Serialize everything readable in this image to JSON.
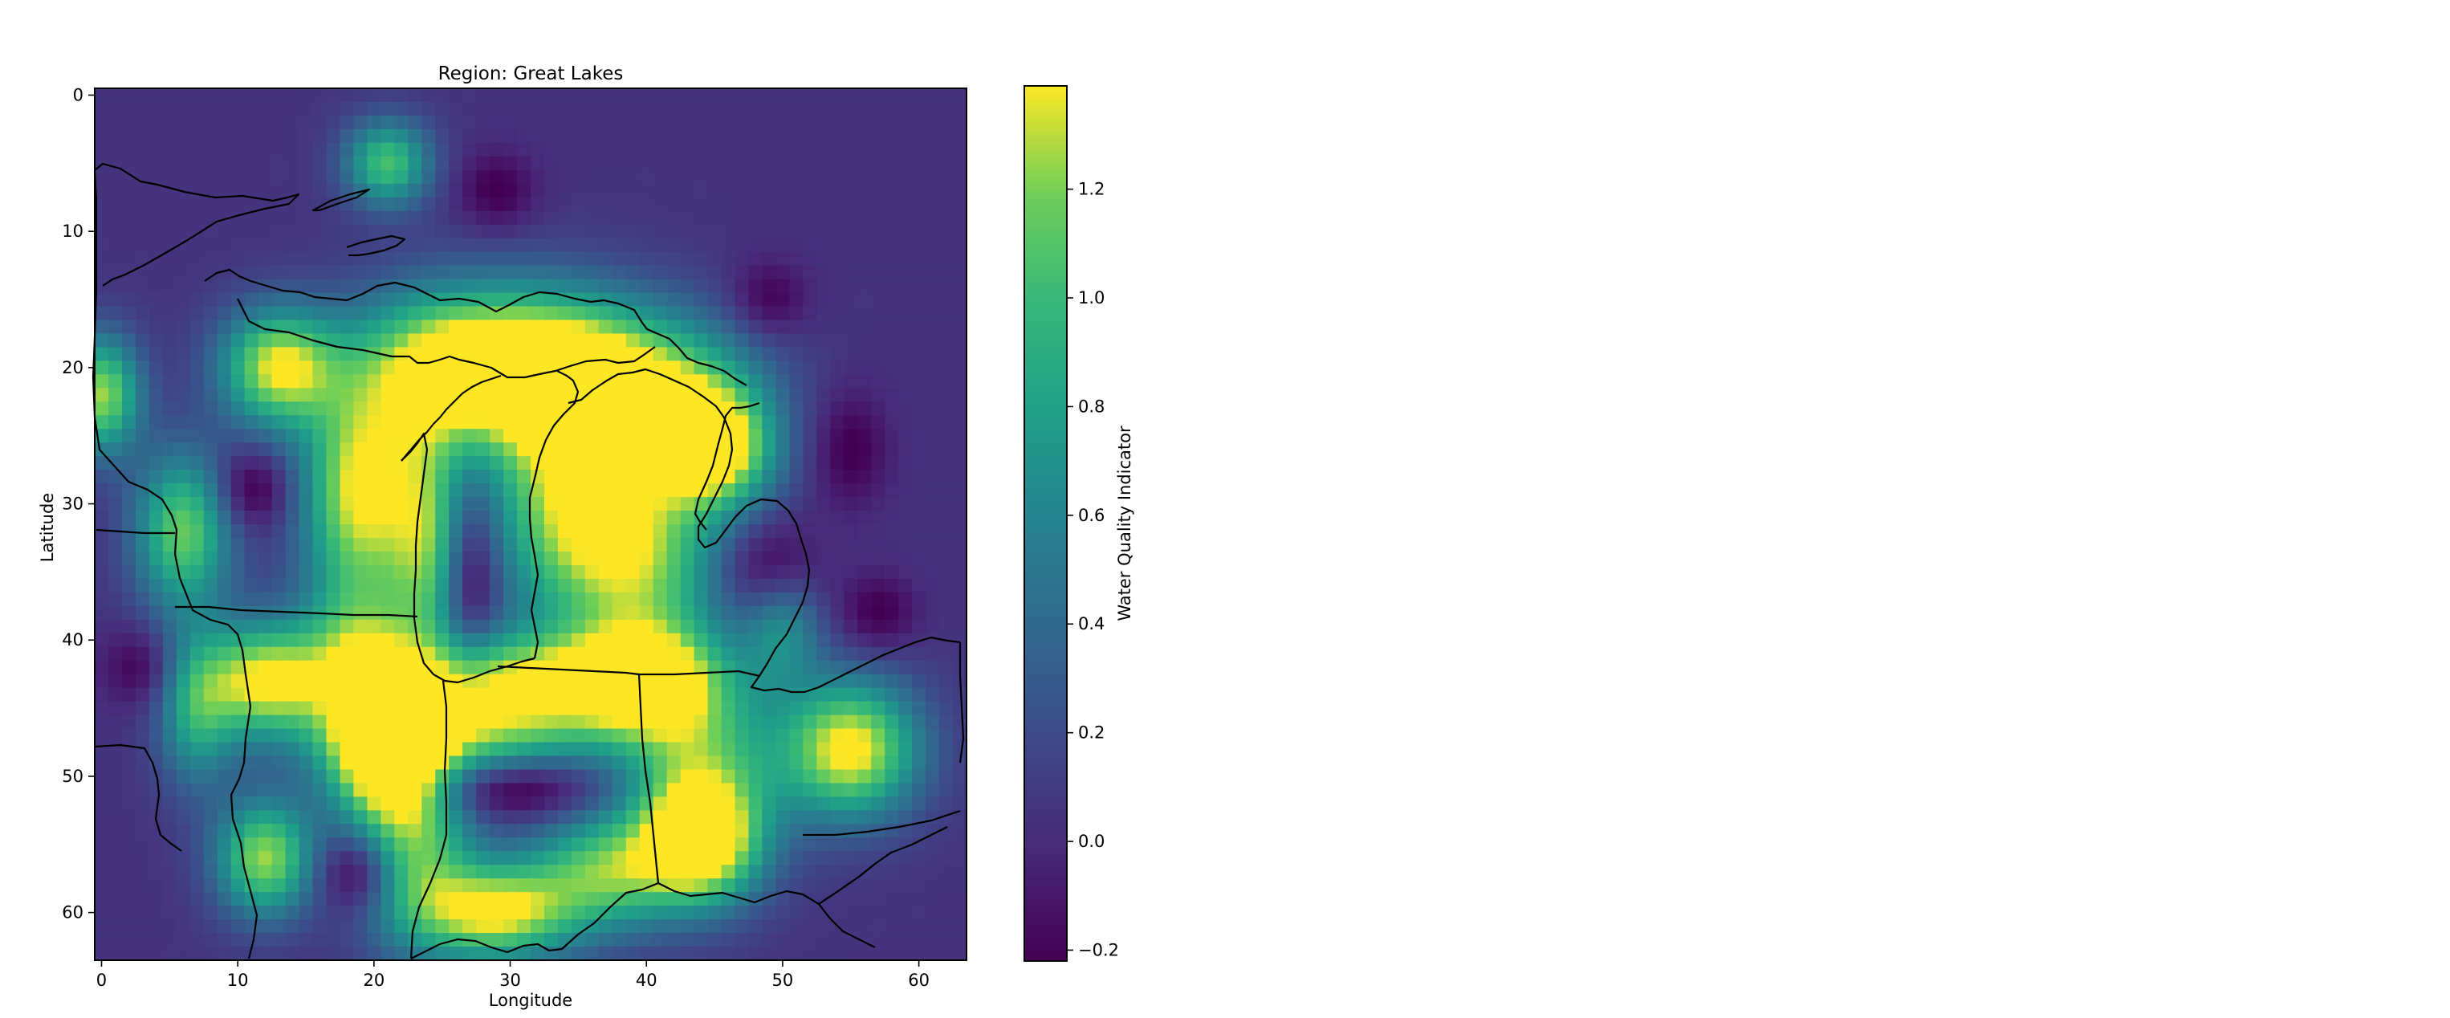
{
  "chart_data": {
    "type": "heatmap",
    "title": "Region: Great Lakes",
    "xlabel": "Longitude",
    "ylabel": "Latitude",
    "xlim": [
      -0.5,
      63.5
    ],
    "ylim": [
      63.5,
      -0.5
    ],
    "x_ticks": [
      "0",
      "10",
      "20",
      "30",
      "40",
      "50",
      "60"
    ],
    "y_ticks": [
      "0",
      "10",
      "20",
      "30",
      "40",
      "50",
      "60"
    ],
    "grid_size": [
      64,
      64
    ],
    "colormap": "viridis",
    "colorbar": {
      "label": "Water Quality Indicator",
      "range": [
        -0.22,
        1.39
      ],
      "ticks": [
        "−0.2",
        "0.0",
        "0.2",
        "0.4",
        "0.6",
        "0.8",
        "1.0",
        "1.2"
      ]
    },
    "field": {
      "background": 0.05,
      "blobs": [
        {
          "x": 21,
          "y": 5,
          "sx": 2.2,
          "sy": 2.2,
          "a": 1.0
        },
        {
          "x": 13,
          "y": 20,
          "sx": 3,
          "sy": 3,
          "a": 1.3
        },
        {
          "x": 19,
          "y": 29,
          "sx": 3,
          "sy": 5,
          "a": 1.3
        },
        {
          "x": 0,
          "y": 22,
          "sx": 2,
          "sy": 3,
          "a": 1.2
        },
        {
          "x": 6,
          "y": 32,
          "sx": 2.5,
          "sy": 4,
          "a": 1.1
        },
        {
          "x": 25,
          "y": 20,
          "sx": 5,
          "sy": 4,
          "a": 1.3
        },
        {
          "x": 33,
          "y": 20,
          "sx": 5,
          "sy": 4,
          "a": 1.2
        },
        {
          "x": 41,
          "y": 22,
          "sx": 5,
          "sy": 4,
          "a": 1.1
        },
        {
          "x": 45,
          "y": 26,
          "sx": 3,
          "sy": 3,
          "a": 1.3
        },
        {
          "x": 34,
          "y": 30,
          "sx": 4,
          "sy": 6,
          "a": 1.1
        },
        {
          "x": 40,
          "y": 34,
          "sx": 4,
          "sy": 5,
          "a": 1.0
        },
        {
          "x": 24,
          "y": 33,
          "sx": 2,
          "sy": 6,
          "a": 0.9
        },
        {
          "x": 12,
          "y": 43,
          "sx": 3,
          "sy": 3,
          "a": 1.3
        },
        {
          "x": 19,
          "y": 42,
          "sx": 3,
          "sy": 5,
          "a": 1.1
        },
        {
          "x": 21,
          "y": 49,
          "sx": 3,
          "sy": 3,
          "a": 1.2
        },
        {
          "x": 30,
          "y": 43,
          "sx": 7,
          "sy": 2.5,
          "a": 1.2
        },
        {
          "x": 40,
          "y": 43,
          "sx": 4,
          "sy": 3,
          "a": 1.1
        },
        {
          "x": 28,
          "y": 47,
          "sx": 6,
          "sy": 2,
          "a": 0.8
        },
        {
          "x": 44,
          "y": 50,
          "sx": 4,
          "sy": 5,
          "a": 1.0
        },
        {
          "x": 55,
          "y": 48,
          "sx": 3.5,
          "sy": 3.5,
          "a": 1.4
        },
        {
          "x": 44,
          "y": 55,
          "sx": 3,
          "sy": 3,
          "a": 1.2
        },
        {
          "x": 12,
          "y": 56,
          "sx": 2.5,
          "sy": 3,
          "a": 1.2
        },
        {
          "x": 29,
          "y": 60,
          "sx": 4,
          "sy": 2.5,
          "a": 1.3
        },
        {
          "x": 23,
          "y": 55,
          "sx": 3,
          "sy": 5,
          "a": 1.0
        },
        {
          "x": 37,
          "y": 57,
          "sx": 4,
          "sy": 3,
          "a": 1.0
        },
        {
          "x": 50,
          "y": 39,
          "sx": 2,
          "sy": 3,
          "a": 0.6
        },
        {
          "x": 7,
          "y": 45,
          "sx": 2,
          "sy": 4,
          "a": 0.8
        }
      ],
      "dips": [
        {
          "x": 27,
          "y": 35,
          "sx": 1.5,
          "sy": 4.5,
          "a": 0.5
        },
        {
          "x": 11,
          "y": 29,
          "sx": 2,
          "sy": 2,
          "a": 0.4
        },
        {
          "x": 30,
          "y": 51,
          "sx": 5,
          "sy": 1.5,
          "a": 0.4
        },
        {
          "x": 19,
          "y": 57,
          "sx": 2,
          "sy": 2,
          "a": 0.5
        },
        {
          "x": 49,
          "y": 35,
          "sx": 2.5,
          "sy": 2.5,
          "a": 0.4
        },
        {
          "x": 49,
          "y": 15,
          "sx": 2,
          "sy": 2,
          "a": 0.3
        },
        {
          "x": 55,
          "y": 26,
          "sx": 2,
          "sy": 3,
          "a": 0.3
        },
        {
          "x": 57,
          "y": 38,
          "sx": 2,
          "sy": 2,
          "a": 0.3
        },
        {
          "x": 29,
          "y": 7,
          "sx": 2,
          "sy": 2,
          "a": 0.3
        },
        {
          "x": 3,
          "y": 42,
          "sx": 2,
          "sy": 2,
          "a": 0.3
        }
      ]
    }
  }
}
